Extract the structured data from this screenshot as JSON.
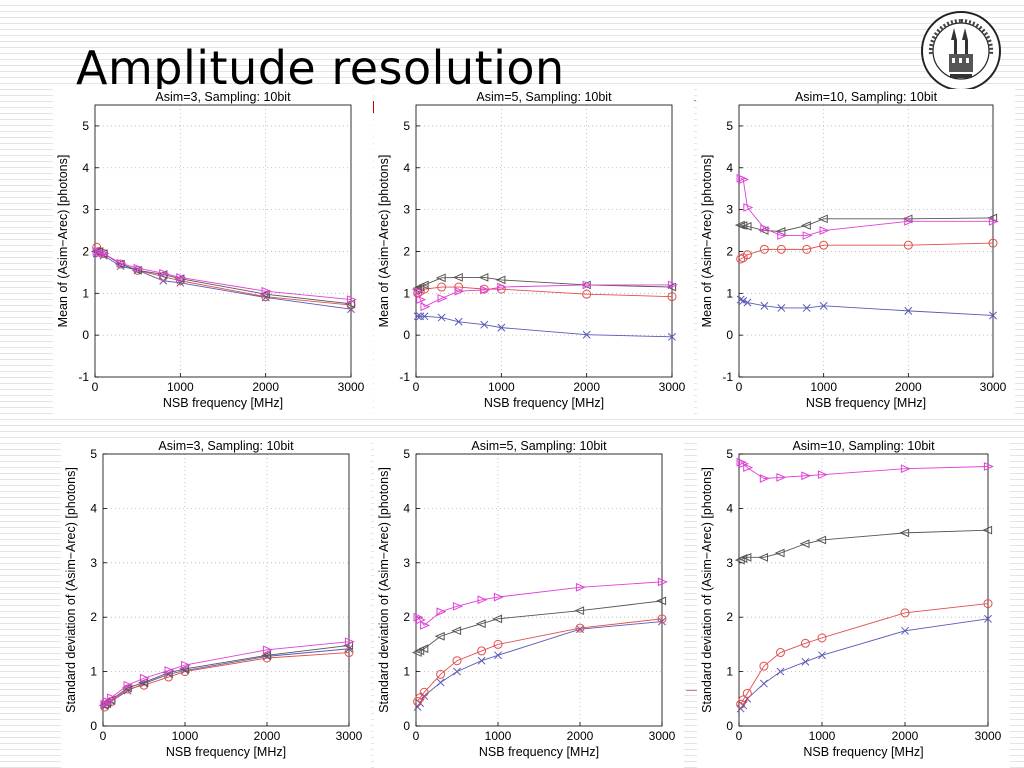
{
  "slide": {
    "title": "Amplitude resolution",
    "logo_text": "UNIVERSITAS TURICENSIS",
    "logo_year": "MDCCCXXXIII"
  },
  "colors": {
    "blue": "#5a5ab8",
    "red": "#e0504c",
    "black": "#555555",
    "magenta": "#e040d8",
    "grid": "#b4b4b4"
  },
  "chart_data": [
    {
      "type": "line",
      "title": "Asim=3, Sampling: 10bit",
      "xlabel": "NSB frequency [MHz]",
      "ylabel": "Mean of (Asim−Arec) [photons]",
      "xlim": [
        0,
        3000
      ],
      "ylim": [
        -1,
        5.5
      ],
      "xticks": [
        0,
        1000,
        2000,
        3000
      ],
      "yticks": [
        -1,
        0,
        1,
        2,
        3,
        4,
        5
      ],
      "grid": true,
      "series": [
        {
          "marker": "x",
          "color": "blue",
          "x": [
            20,
            50,
            100,
            300,
            500,
            800,
            1000,
            2000,
            3000
          ],
          "y": [
            1.95,
            1.95,
            1.9,
            1.65,
            1.55,
            1.3,
            1.25,
            0.9,
            0.62
          ]
        },
        {
          "marker": "circle",
          "color": "red",
          "x": [
            20,
            50,
            100,
            300,
            500,
            800,
            1000,
            2000,
            3000
          ],
          "y": [
            2.1,
            2.0,
            1.95,
            1.7,
            1.55,
            1.4,
            1.3,
            0.92,
            0.72
          ]
        },
        {
          "marker": "triangle-left",
          "color": "black",
          "x": [
            20,
            50,
            100,
            300,
            500,
            800,
            1000,
            2000,
            3000
          ],
          "y": [
            2.0,
            2.0,
            1.95,
            1.7,
            1.55,
            1.45,
            1.35,
            0.98,
            0.75
          ]
        },
        {
          "marker": "triangle-right",
          "color": "magenta",
          "x": [
            20,
            50,
            100,
            300,
            500,
            800,
            1000,
            2000,
            3000
          ],
          "y": [
            2.0,
            1.95,
            1.95,
            1.72,
            1.6,
            1.48,
            1.38,
            1.05,
            0.85
          ]
        }
      ]
    },
    {
      "type": "line",
      "title": "Asim=5, Sampling: 10bit",
      "xlabel": "NSB frequency [MHz]",
      "ylabel": "Mean of (Asim−Arec) [photons]",
      "xlim": [
        0,
        3000
      ],
      "ylim": [
        -1,
        5.5
      ],
      "xticks": [
        0,
        1000,
        2000,
        3000
      ],
      "yticks": [
        -1,
        0,
        1,
        2,
        3,
        4,
        5
      ],
      "grid": true,
      "series": [
        {
          "marker": "x",
          "color": "blue",
          "x": [
            20,
            50,
            100,
            300,
            500,
            800,
            1000,
            2000,
            3000
          ],
          "y": [
            0.45,
            0.45,
            0.45,
            0.42,
            0.32,
            0.25,
            0.18,
            0.01,
            -0.04
          ]
        },
        {
          "marker": "circle",
          "color": "red",
          "x": [
            20,
            50,
            100,
            300,
            500,
            800,
            1000,
            2000,
            3000
          ],
          "y": [
            1.0,
            1.05,
            1.1,
            1.15,
            1.15,
            1.1,
            1.1,
            0.98,
            0.92
          ]
        },
        {
          "marker": "triangle-left",
          "color": "black",
          "x": [
            20,
            50,
            100,
            300,
            500,
            800,
            1000,
            2000,
            3000
          ],
          "y": [
            1.1,
            1.15,
            1.2,
            1.37,
            1.38,
            1.38,
            1.32,
            1.2,
            1.15
          ]
        },
        {
          "marker": "triangle-right",
          "color": "magenta",
          "x": [
            20,
            50,
            100,
            300,
            500,
            800,
            1000,
            2000,
            3000
          ],
          "y": [
            1.05,
            0.85,
            0.68,
            0.88,
            1.05,
            1.08,
            1.15,
            1.2,
            1.2
          ]
        }
      ]
    },
    {
      "type": "line",
      "title": "Asim=10, Sampling: 10bit",
      "xlabel": "NSB frequency [MHz]",
      "ylabel": "Mean of (Asim−Arec) [photons]",
      "xlim": [
        0,
        3000
      ],
      "ylim": [
        -1,
        5.5
      ],
      "xticks": [
        0,
        1000,
        2000,
        3000
      ],
      "yticks": [
        -1,
        0,
        1,
        2,
        3,
        4,
        5
      ],
      "grid": true,
      "series": [
        {
          "marker": "x",
          "color": "blue",
          "x": [
            20,
            50,
            100,
            300,
            500,
            800,
            1000,
            2000,
            3000
          ],
          "y": [
            0.85,
            0.82,
            0.78,
            0.7,
            0.65,
            0.65,
            0.7,
            0.58,
            0.47
          ]
        },
        {
          "marker": "circle",
          "color": "red",
          "x": [
            20,
            50,
            100,
            300,
            500,
            800,
            1000,
            2000,
            3000
          ],
          "y": [
            1.82,
            1.85,
            1.92,
            2.05,
            2.05,
            2.05,
            2.15,
            2.15,
            2.2
          ]
        },
        {
          "marker": "triangle-left",
          "color": "black",
          "x": [
            20,
            50,
            100,
            300,
            500,
            800,
            1000,
            2000,
            3000
          ],
          "y": [
            2.63,
            2.62,
            2.6,
            2.5,
            2.48,
            2.62,
            2.78,
            2.78,
            2.8
          ]
        },
        {
          "marker": "triangle-right",
          "color": "magenta",
          "x": [
            20,
            50,
            100,
            300,
            500,
            800,
            1000,
            2000,
            3000
          ],
          "y": [
            3.75,
            3.72,
            3.05,
            2.55,
            2.38,
            2.38,
            2.5,
            2.72,
            2.72
          ]
        }
      ]
    },
    {
      "type": "line",
      "title": "Asim=3, Sampling: 10bit",
      "xlabel": "NSB frequency [MHz]",
      "ylabel": "Standard deviation of (Asim−Arec) [photons]",
      "xlim": [
        0,
        3000
      ],
      "ylim": [
        0,
        5
      ],
      "xticks": [
        0,
        1000,
        2000,
        3000
      ],
      "yticks": [
        0,
        1,
        2,
        3,
        4,
        5
      ],
      "grid": true,
      "series": [
        {
          "marker": "x",
          "color": "blue",
          "x": [
            20,
            50,
            100,
            300,
            500,
            800,
            1000,
            2000,
            3000
          ],
          "y": [
            0.38,
            0.4,
            0.45,
            0.65,
            0.78,
            0.95,
            1.02,
            1.28,
            1.42
          ]
        },
        {
          "marker": "circle",
          "color": "red",
          "x": [
            20,
            50,
            100,
            300,
            500,
            800,
            1000,
            2000,
            3000
          ],
          "y": [
            0.35,
            0.4,
            0.45,
            0.68,
            0.75,
            0.9,
            1.0,
            1.25,
            1.35
          ]
        },
        {
          "marker": "triangle-left",
          "color": "black",
          "x": [
            20,
            50,
            100,
            300,
            500,
            800,
            1000,
            2000,
            3000
          ],
          "y": [
            0.38,
            0.42,
            0.48,
            0.7,
            0.8,
            0.98,
            1.05,
            1.3,
            1.48
          ]
        },
        {
          "marker": "triangle-right",
          "color": "magenta",
          "x": [
            20,
            50,
            100,
            300,
            500,
            800,
            1000,
            2000,
            3000
          ],
          "y": [
            0.4,
            0.45,
            0.52,
            0.75,
            0.88,
            1.02,
            1.12,
            1.4,
            1.55
          ]
        }
      ]
    },
    {
      "type": "line",
      "title": "Asim=5, Sampling: 10bit",
      "xlabel": "NSB frequency [MHz]",
      "ylabel": "Standard deviation of (Asim−Arec) [photons]",
      "xlim": [
        0,
        3000
      ],
      "ylim": [
        0,
        5
      ],
      "xticks": [
        0,
        1000,
        2000,
        3000
      ],
      "yticks": [
        0,
        1,
        2,
        3,
        4,
        5
      ],
      "grid": true,
      "series": [
        {
          "marker": "x",
          "color": "blue",
          "x": [
            20,
            50,
            100,
            300,
            500,
            800,
            1000,
            2000,
            3000
          ],
          "y": [
            0.35,
            0.42,
            0.55,
            0.8,
            1.0,
            1.2,
            1.3,
            1.78,
            1.92
          ]
        },
        {
          "marker": "circle",
          "color": "red",
          "x": [
            20,
            50,
            100,
            300,
            500,
            800,
            1000,
            2000,
            3000
          ],
          "y": [
            0.45,
            0.52,
            0.62,
            0.95,
            1.2,
            1.38,
            1.5,
            1.8,
            1.97
          ]
        },
        {
          "marker": "triangle-left",
          "color": "black",
          "x": [
            20,
            50,
            100,
            300,
            500,
            800,
            1000,
            2000,
            3000
          ],
          "y": [
            1.35,
            1.38,
            1.42,
            1.65,
            1.75,
            1.88,
            1.97,
            2.12,
            2.3
          ]
        },
        {
          "marker": "triangle-right",
          "color": "magenta",
          "x": [
            20,
            50,
            100,
            300,
            500,
            800,
            1000,
            2000,
            3000
          ],
          "y": [
            2.0,
            1.95,
            1.85,
            2.1,
            2.2,
            2.32,
            2.37,
            2.55,
            2.65
          ]
        }
      ]
    },
    {
      "type": "line",
      "title": "Asim=10, Sampling: 10bit",
      "xlabel": "NSB frequency [MHz]",
      "ylabel": "Standard deviation of (Asim−Arec) [photons]",
      "xlim": [
        0,
        3000
      ],
      "ylim": [
        0,
        5
      ],
      "xticks": [
        0,
        1000,
        2000,
        3000
      ],
      "yticks": [
        0,
        1,
        2,
        3,
        4,
        5
      ],
      "grid": true,
      "series": [
        {
          "marker": "x",
          "color": "blue",
          "x": [
            20,
            50,
            100,
            300,
            500,
            800,
            1000,
            2000,
            3000
          ],
          "y": [
            0.32,
            0.38,
            0.5,
            0.78,
            1.0,
            1.18,
            1.3,
            1.75,
            1.97
          ]
        },
        {
          "marker": "circle",
          "color": "red",
          "x": [
            20,
            50,
            100,
            300,
            500,
            800,
            1000,
            2000,
            3000
          ],
          "y": [
            0.4,
            0.48,
            0.6,
            1.1,
            1.35,
            1.52,
            1.62,
            2.08,
            2.25
          ]
        },
        {
          "marker": "triangle-left",
          "color": "black",
          "x": [
            20,
            50,
            100,
            300,
            500,
            800,
            1000,
            2000,
            3000
          ],
          "y": [
            3.05,
            3.08,
            3.1,
            3.1,
            3.18,
            3.35,
            3.42,
            3.55,
            3.6
          ]
        },
        {
          "marker": "triangle-right",
          "color": "magenta",
          "x": [
            20,
            50,
            100,
            300,
            500,
            800,
            1000,
            2000,
            3000
          ],
          "y": [
            4.85,
            4.82,
            4.75,
            4.55,
            4.57,
            4.6,
            4.62,
            4.73,
            4.77
          ]
        }
      ]
    }
  ]
}
